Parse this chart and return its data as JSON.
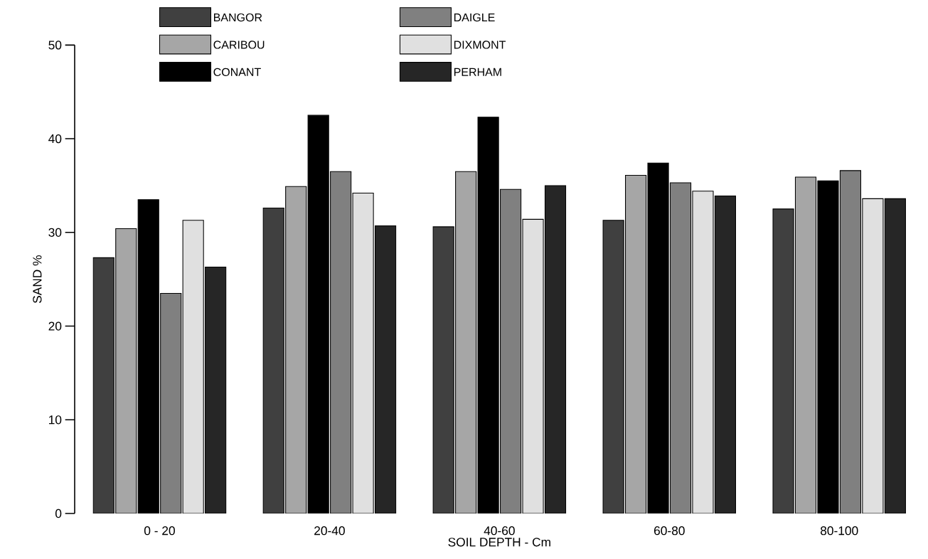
{
  "chart_data": {
    "type": "bar",
    "xlabel": "SOIL DEPTH - Cm",
    "ylabel": "SAND %",
    "categories": [
      "0 - 20",
      "20-40",
      "40-60",
      "60-80",
      "80-100"
    ],
    "series": [
      {
        "name": "BANGOR",
        "color": "#404040",
        "values": [
          27.3,
          32.6,
          30.6,
          31.3,
          32.5
        ]
      },
      {
        "name": "CARIBOU",
        "color": "#a6a6a6",
        "values": [
          30.4,
          34.9,
          36.5,
          36.1,
          35.9
        ]
      },
      {
        "name": "CONANT",
        "color": "#000000",
        "values": [
          33.5,
          42.5,
          42.3,
          37.4,
          35.5
        ]
      },
      {
        "name": "DAIGLE",
        "color": "#808080",
        "values": [
          23.5,
          36.5,
          34.6,
          35.3,
          36.6
        ]
      },
      {
        "name": "DIXMONT",
        "color": "#e0e0e0",
        "values": [
          31.3,
          34.2,
          31.4,
          34.4,
          33.6
        ]
      },
      {
        "name": "PERHAM",
        "color": "#262626",
        "values": [
          26.3,
          30.7,
          35.0,
          33.9,
          33.6
        ]
      }
    ],
    "ylim": [
      0,
      50
    ],
    "yticks": [
      0,
      10,
      20,
      30,
      40,
      50
    ],
    "grid": false,
    "legend": "top"
  }
}
